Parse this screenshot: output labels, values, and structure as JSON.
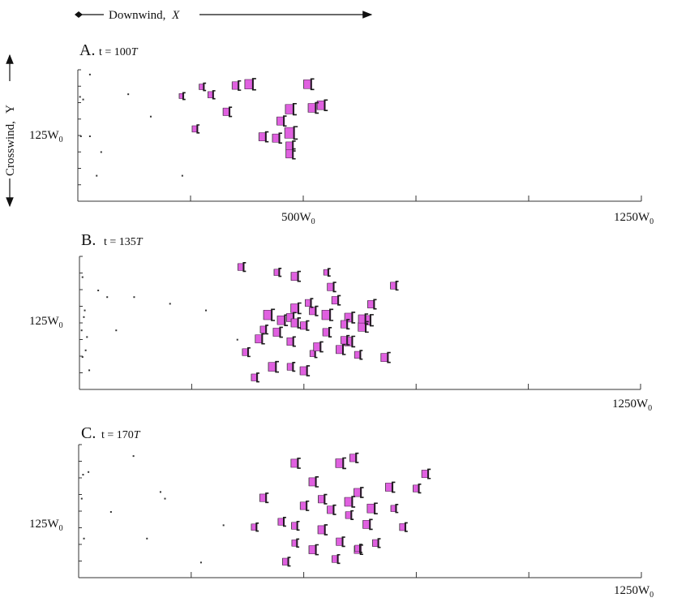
{
  "header": {
    "downwind_label": "Downwind,",
    "downwind_var": "X",
    "crosswind_label": "Crosswind,",
    "crosswind_var": "Y"
  },
  "colors": {
    "dune_fill": "#e060e0",
    "dune_stroke": "#1a1a1a",
    "axis": "#333333"
  },
  "panels": [
    {
      "id": "A",
      "letter": "A.",
      "time_prefix": "t = 100",
      "time_unit": "T",
      "y_tick_label": "125W",
      "x_tick_labels": [
        "500W",
        "1250W"
      ],
      "subscript": "0",
      "x_ticks": [
        0,
        250,
        500,
        750,
        1000,
        1250
      ],
      "dunes": [
        [
          380,
          11,
          15
        ],
        [
          540,
          27,
          14
        ],
        [
          470,
          30,
          15
        ],
        [
          510,
          11,
          14
        ],
        [
          350,
          12,
          12
        ],
        [
          295,
          19,
          10
        ],
        [
          275,
          13,
          9
        ],
        [
          230,
          20,
          8
        ],
        [
          470,
          48,
          17
        ],
        [
          440,
          52,
          13
        ],
        [
          470,
          58,
          13
        ],
        [
          410,
          51,
          13
        ],
        [
          470,
          64,
          13
        ],
        [
          520,
          29,
          14
        ],
        [
          450,
          39,
          13
        ],
        [
          330,
          32,
          12
        ],
        [
          260,
          45,
          10
        ]
      ],
      "specks": [
        [
          10,
          22
        ],
        [
          110,
          18
        ],
        [
          50,
          62
        ],
        [
          25,
          3
        ],
        [
          25,
          50
        ],
        [
          160,
          35
        ],
        [
          230,
          80
        ],
        [
          40,
          80
        ],
        [
          5,
          50
        ],
        [
          3,
          20
        ]
      ]
    },
    {
      "id": "B",
      "letter": "B.",
      "time_prefix": "t = 135",
      "time_unit": "T",
      "y_tick_label": "125W",
      "x_tick_labels": [
        "1250W"
      ],
      "subscript": "0",
      "x_ticks": [
        0,
        250,
        500,
        750,
        1000,
        1250
      ],
      "dunes": [
        [
          360,
          8,
          11
        ],
        [
          440,
          12,
          10
        ],
        [
          480,
          15,
          13
        ],
        [
          550,
          12,
          9
        ],
        [
          480,
          39,
          14
        ],
        [
          520,
          41,
          12
        ],
        [
          560,
          23,
          12
        ],
        [
          520,
          73,
          10
        ],
        [
          500,
          86,
          13
        ],
        [
          470,
          64,
          12
        ],
        [
          440,
          57,
          13
        ],
        [
          410,
          55,
          11
        ],
        [
          400,
          62,
          13
        ],
        [
          370,
          72,
          11
        ],
        [
          430,
          83,
          14
        ],
        [
          390,
          91,
          11
        ],
        [
          450,
          48,
          14
        ],
        [
          640,
          48,
          15
        ],
        [
          600,
          64,
          14
        ],
        [
          580,
          70,
          13
        ],
        [
          630,
          53,
          14
        ],
        [
          600,
          46,
          14
        ],
        [
          620,
          74,
          11
        ],
        [
          550,
          44,
          15
        ],
        [
          530,
          68,
          13
        ],
        [
          510,
          35,
          11
        ],
        [
          500,
          52,
          12
        ],
        [
          550,
          57,
          12
        ],
        [
          590,
          51,
          12
        ],
        [
          630,
          47,
          13
        ],
        [
          470,
          46,
          13
        ],
        [
          420,
          44,
          15
        ],
        [
          570,
          33,
          12
        ],
        [
          480,
          50,
          13
        ],
        [
          470,
          83,
          11
        ],
        [
          650,
          36,
          12
        ],
        [
          590,
          63,
          12
        ],
        [
          680,
          76,
          13
        ],
        [
          700,
          22,
          11
        ]
      ],
      "specks": [
        [
          20,
          85
        ],
        [
          40,
          25
        ],
        [
          60,
          30
        ],
        [
          80,
          55
        ],
        [
          120,
          30
        ],
        [
          200,
          35
        ],
        [
          350,
          62
        ],
        [
          280,
          40
        ],
        [
          10,
          40
        ],
        [
          15,
          60
        ],
        [
          5,
          75
        ],
        [
          12,
          70
        ],
        [
          8,
          45
        ],
        [
          5,
          15
        ],
        [
          3,
          55
        ]
      ]
    },
    {
      "id": "C",
      "letter": "C.",
      "time_prefix": "t = 170",
      "time_unit": "T",
      "y_tick_label": "125W",
      "x_tick_labels": [
        "1250W"
      ],
      "subscript": "0",
      "x_ticks": [
        0,
        250,
        500,
        750,
        1000,
        1250
      ],
      "dunes": [
        [
          480,
          14,
          13
        ],
        [
          500,
          46,
          12
        ],
        [
          480,
          61,
          11
        ],
        [
          480,
          74,
          10
        ],
        [
          520,
          79,
          13
        ],
        [
          540,
          64,
          13
        ],
        [
          560,
          49,
          12
        ],
        [
          600,
          53,
          11
        ],
        [
          620,
          36,
          13
        ],
        [
          580,
          14,
          14
        ],
        [
          600,
          43,
          14
        ],
        [
          620,
          79,
          12
        ],
        [
          650,
          48,
          14
        ],
        [
          660,
          74,
          11
        ],
        [
          690,
          32,
          13
        ],
        [
          700,
          48,
          10
        ],
        [
          720,
          62,
          11
        ],
        [
          770,
          22,
          12
        ],
        [
          750,
          33,
          11
        ],
        [
          640,
          60,
          13
        ],
        [
          520,
          28,
          13
        ],
        [
          540,
          41,
          12
        ],
        [
          570,
          86,
          11
        ],
        [
          580,
          73,
          12
        ],
        [
          410,
          40,
          12
        ],
        [
          450,
          58,
          11
        ],
        [
          390,
          62,
          10
        ],
        [
          610,
          10,
          12
        ],
        [
          620,
          78,
          10
        ],
        [
          460,
          88,
          11
        ]
      ],
      "specks": [
        [
          20,
          20
        ],
        [
          70,
          50
        ],
        [
          120,
          8
        ],
        [
          150,
          70
        ],
        [
          190,
          40
        ],
        [
          270,
          88
        ],
        [
          320,
          60
        ],
        [
          180,
          35
        ],
        [
          5,
          40
        ],
        [
          10,
          70
        ],
        [
          8,
          22
        ]
      ]
    }
  ]
}
